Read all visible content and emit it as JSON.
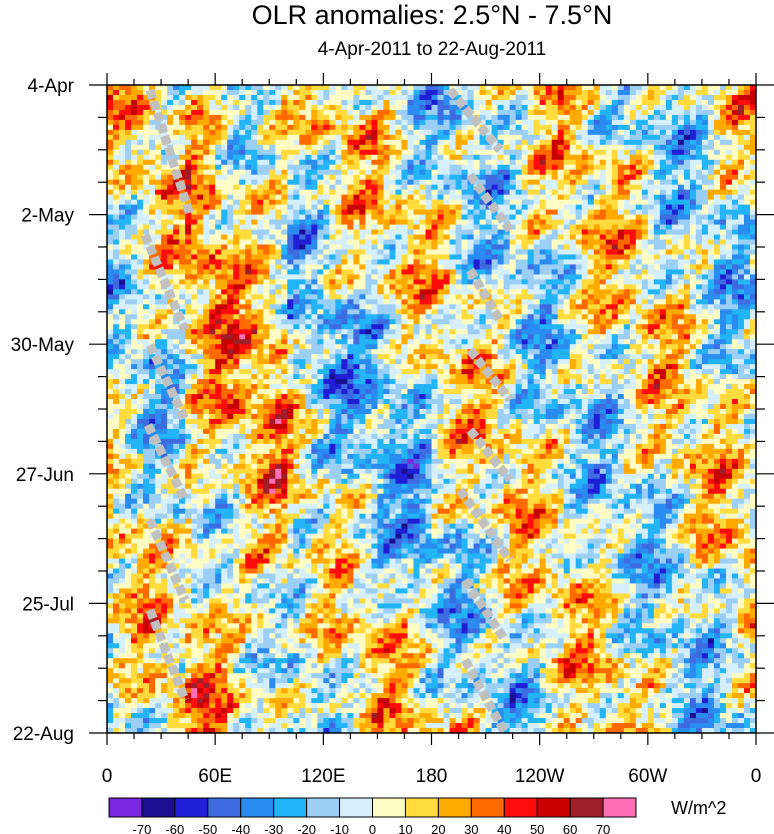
{
  "chart_data": {
    "type": "heatmap",
    "title": "OLR anomalies: 2.5°N - 7.5°N",
    "subtitle": "4-Apr-2011 to 22-Aug-2011",
    "xlabel": "",
    "ylabel": "",
    "x_ticks": [
      "0",
      "60E",
      "120E",
      "180",
      "120W",
      "60W",
      "0"
    ],
    "x_range_deg_east": [
      0,
      360
    ],
    "y_ticks": [
      "4-Apr",
      "2-May",
      "30-May",
      "27-Jun",
      "25-Jul",
      "22-Aug"
    ],
    "y_range_days": [
      0,
      140
    ],
    "colorbar": {
      "units": "W/m^2",
      "tick_labels": [
        "-70",
        "-60",
        "-50",
        "-40",
        "-30",
        "-20",
        "-10",
        "0",
        "10",
        "20",
        "30",
        "40",
        "50",
        "60",
        "70"
      ],
      "colors": [
        "#7b26e0",
        "#1a0f91",
        "#1f1fd6",
        "#3f6be0",
        "#2b8cf0",
        "#22b4f5",
        "#9ccff5",
        "#d6f0fb",
        "#fffcc4",
        "#ffdb3d",
        "#ffaa00",
        "#ff6a00",
        "#ff0d0d",
        "#c80000",
        "#9e1f2a",
        "#ff6fb6"
      ]
    },
    "missing_color": "#c0c0c0"
  }
}
